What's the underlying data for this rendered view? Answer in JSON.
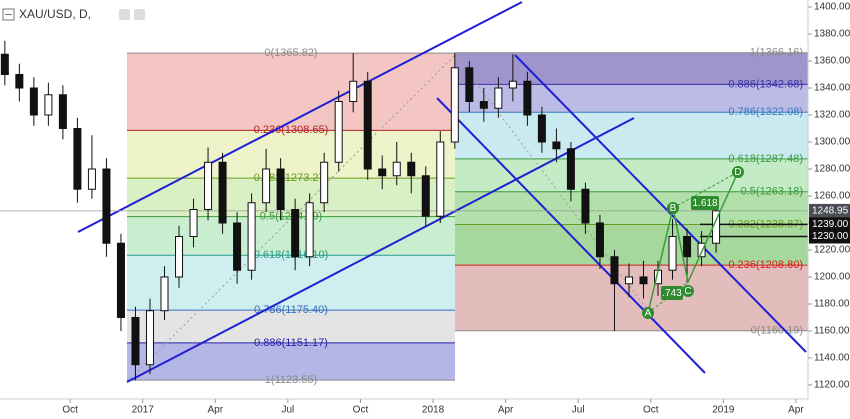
{
  "chart_data": {
    "type": "candlestick",
    "title": "XAU/USD, D,",
    "x": [
      6.3,
      6.9,
      7.5,
      8.1,
      8.7,
      9.3,
      9.9,
      10.5,
      11.1,
      11.7,
      12.3,
      12.9,
      13.5,
      14.1,
      14.7,
      15.3,
      15.9,
      16.5,
      17.1,
      17.7,
      18.3,
      18.9,
      19.5,
      20.1,
      20.7,
      21.3,
      21.9,
      22.5,
      23.1,
      23.7,
      24.3,
      24.9,
      25.5,
      26.1,
      26.7,
      27.3,
      27.9,
      28.5,
      29.1,
      29.7,
      30.3,
      30.9,
      31.5,
      32.1,
      32.7,
      33.3,
      33.9,
      34.5,
      35.1,
      35.7
    ],
    "open": [
      1365,
      1350,
      1340,
      1320,
      1335,
      1310,
      1265,
      1280,
      1225,
      1170,
      1135,
      1175,
      1200,
      1230,
      1250,
      1285,
      1240,
      1205,
      1255,
      1280,
      1250,
      1215,
      1255,
      1285,
      1330,
      1345,
      1280,
      1275,
      1285,
      1275,
      1245,
      1300,
      1355,
      1330,
      1325,
      1340,
      1345,
      1320,
      1300,
      1295,
      1265,
      1240,
      1215,
      1195,
      1200,
      1195,
      1205,
      1230,
      1215,
      1225
    ],
    "high": [
      1375,
      1358,
      1348,
      1344,
      1342,
      1318,
      1305,
      1288,
      1232,
      1178,
      1184,
      1208,
      1238,
      1258,
      1296,
      1292,
      1248,
      1262,
      1295,
      1288,
      1258,
      1262,
      1292,
      1338,
      1365.82,
      1352,
      1290,
      1300,
      1292,
      1282,
      1308,
      1366,
      1360,
      1340,
      1348,
      1365,
      1352,
      1326,
      1310,
      1300,
      1270,
      1246,
      1220,
      1210,
      1212,
      1212,
      1243,
      1236,
      1234,
      1256
    ],
    "low": [
      1342,
      1330,
      1312,
      1312,
      1302,
      1255,
      1258,
      1215,
      1160,
      1123.55,
      1128,
      1168,
      1192,
      1222,
      1242,
      1232,
      1195,
      1198,
      1248,
      1242,
      1205,
      1208,
      1248,
      1278,
      1322,
      1272,
      1265,
      1268,
      1262,
      1238,
      1240,
      1295,
      1322,
      1315,
      1318,
      1330,
      1312,
      1292,
      1285,
      1256,
      1232,
      1206,
      1160,
      1185,
      1184,
      1186,
      1198,
      1196,
      1208,
      1218
    ],
    "close": [
      1350,
      1340,
      1320,
      1335,
      1310,
      1265,
      1280,
      1225,
      1170,
      1135,
      1175,
      1200,
      1230,
      1250,
      1285,
      1240,
      1205,
      1255,
      1280,
      1250,
      1215,
      1255,
      1285,
      1330,
      1345,
      1280,
      1275,
      1285,
      1275,
      1245,
      1300,
      1355,
      1330,
      1325,
      1340,
      1345,
      1320,
      1300,
      1295,
      1265,
      1240,
      1215,
      1195,
      1200,
      1195,
      1205,
      1230,
      1215,
      1225,
      1249
    ],
    "xlim": [
      6.1,
      39.5
    ],
    "ylim": [
      1109.6,
      1405.2
    ],
    "xticks": [
      {
        "value": 9,
        "label": "Oct"
      },
      {
        "value": 12,
        "label": "2017"
      },
      {
        "value": 15,
        "label": "Apr"
      },
      {
        "value": 18,
        "label": "Jul"
      },
      {
        "value": 21,
        "label": "Oct"
      },
      {
        "value": 24,
        "label": "2018"
      },
      {
        "value": 27,
        "label": "Apr"
      },
      {
        "value": 30,
        "label": "Jul"
      },
      {
        "value": 33,
        "label": "Oct"
      },
      {
        "value": 36,
        "label": "2019"
      },
      {
        "value": 39,
        "label": "Apr"
      }
    ],
    "yticks": [
      {
        "value": 1120,
        "label": "1120.00"
      },
      {
        "value": 1140,
        "label": "1140.00"
      },
      {
        "value": 1160,
        "label": "1160.00"
      },
      {
        "value": 1180,
        "label": "1180.00"
      },
      {
        "value": 1200,
        "label": "1200.00"
      },
      {
        "value": 1220,
        "label": "1220.00"
      },
      {
        "value": 1240,
        "label": "1240.00"
      },
      {
        "value": 1260,
        "label": "1260.00"
      },
      {
        "value": 1280,
        "label": "1280.00"
      },
      {
        "value": 1300,
        "label": "1300.00"
      },
      {
        "value": 1320,
        "label": "1320.00"
      },
      {
        "value": 1340,
        "label": "1340.00"
      },
      {
        "value": 1360,
        "label": "1360.00"
      },
      {
        "value": 1380,
        "label": "1380.00"
      },
      {
        "value": 1400,
        "label": "1400.00"
      }
    ],
    "fib_retracements": [
      {
        "levels": [
          {
            "value": 1365.82,
            "label": "0(1365.82)",
            "color": "#8a8a8a",
            "fill": "#f3c6c4"
          },
          {
            "value": 1308.65,
            "label": "0.236(1308.65)",
            "color": "#b22222",
            "fill": "#eef3c9"
          },
          {
            "value": 1273.27,
            "label": "0.382(1273.27)",
            "color": "#6a9a1f",
            "fill": "#d9f0c4"
          },
          {
            "value": 1244.69,
            "label": "0.5(1244.69)",
            "color": "#3d9a3d",
            "fill": "#c9eecf"
          },
          {
            "value": 1216.1,
            "label": "0.618(1216.10)",
            "color": "#2a9d8f",
            "fill": "#cfeef0"
          },
          {
            "value": 1175.4,
            "label": "0.786(1175.40)",
            "color": "#3a6ebf",
            "fill": "#e4e4e4"
          },
          {
            "value": 1151.17,
            "label": "0.886(1151.17)",
            "color": "#2424a8",
            "fill": "#b4b6e6"
          },
          {
            "value": 1123.55,
            "label": "1(1123.55)",
            "color": "#8a8a8a"
          }
        ]
      },
      {
        "levels": [
          {
            "value": 1366.16,
            "label": "1(1366.16)",
            "color": "#8a8a8a",
            "fill": "#9f95cc"
          },
          {
            "value": 1342.68,
            "label": "0.886(1342.68)",
            "color": "#3b2ea8",
            "fill": "#bcbbe6"
          },
          {
            "value": 1322.08,
            "label": "0.786(1322.08)",
            "color": "#3a7abf",
            "fill": "#c9eaf0"
          },
          {
            "value": 1287.48,
            "label": "0.618(1287.48)",
            "color": "#3d9a3d",
            "fill": "#c2ebc6"
          },
          {
            "value": 1263.18,
            "label": "0.5(1263.18)",
            "color": "#3d9a3d",
            "fill": "#b2e0ab"
          },
          {
            "value": 1238.87,
            "label": "0.382(1238.87)",
            "color": "#6a9a1f",
            "fill": "#a6d79c"
          },
          {
            "value": 1208.8,
            "label": "0.236(1208.80)",
            "color": "#d42020",
            "fill": "#e3bcbc"
          },
          {
            "value": 1160.19,
            "label": "0(1160.19)",
            "color": "#8a8a8a"
          }
        ]
      }
    ],
    "price_labels": [
      {
        "value": 1248.95,
        "label": "1248.95",
        "color": "#4a4d55"
      },
      {
        "value": 1239,
        "label": "1239.00",
        "color": "#111111"
      },
      {
        "value": 1230,
        "label": "1230.00",
        "color": "#111111"
      }
    ],
    "pattern": {
      "points": [
        "A",
        "B",
        "C",
        "D"
      ],
      "ratios": [
        "1.618",
        ".743"
      ]
    }
  }
}
